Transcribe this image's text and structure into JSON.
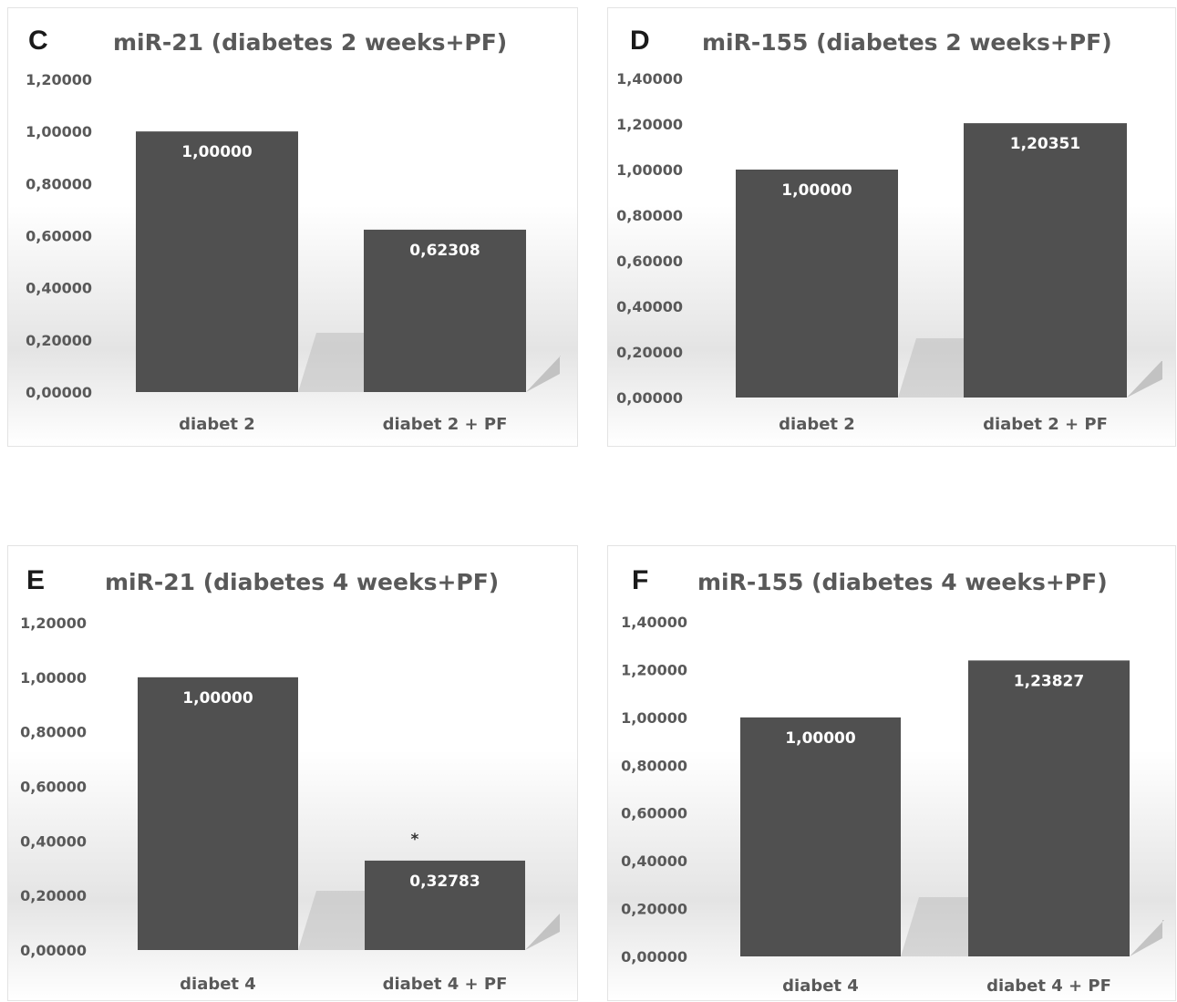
{
  "chart_data": [
    {
      "type": "bar",
      "panel_letter": "C",
      "title": "miR-21 (diabetes 2 weeks+PF)",
      "categories": [
        "diabet 2",
        "diabet 2 + PF"
      ],
      "values": [
        1.0,
        0.62308
      ],
      "value_labels": [
        "1,00000",
        "0,62308"
      ],
      "ylim": [
        0,
        1.2
      ],
      "yticks": [
        "0,00000",
        "0,20000",
        "0,40000",
        "0,60000",
        "0,80000",
        "1,00000",
        "1,20000"
      ],
      "annotations": [],
      "bar_color": "#505050",
      "grid": false,
      "legend": "none"
    },
    {
      "type": "bar",
      "panel_letter": "D",
      "title": "miR-155 (diabetes 2 weeks+PF)",
      "categories": [
        "diabet 2",
        "diabet 2 + PF"
      ],
      "values": [
        1.0,
        1.20351
      ],
      "value_labels": [
        "1,00000",
        "1,20351"
      ],
      "ylim": [
        0,
        1.4
      ],
      "yticks": [
        "0,00000",
        "0,20000",
        "0,40000",
        "0,60000",
        "0,80000",
        "1,00000",
        "1,20000",
        "1,40000"
      ],
      "annotations": [],
      "bar_color": "#505050",
      "grid": false,
      "legend": "none"
    },
    {
      "type": "bar",
      "panel_letter": "E",
      "title": "miR-21 (diabetes 4 weeks+PF)",
      "categories": [
        "diabet 4",
        "diabet 4 + PF"
      ],
      "values": [
        1.0,
        0.32783
      ],
      "value_labels": [
        "1,00000",
        "0,32783"
      ],
      "ylim": [
        0,
        1.2
      ],
      "yticks": [
        "0,00000",
        "0,20000",
        "0,40000",
        "0,60000",
        "0,80000",
        "1,00000",
        "1,20000"
      ],
      "annotations": [
        {
          "category": "diabet 4 + PF",
          "text": "*"
        }
      ],
      "bar_color": "#505050",
      "grid": false,
      "legend": "none"
    },
    {
      "type": "bar",
      "panel_letter": "F",
      "title": "miR-155 (diabetes 4 weeks+PF)",
      "categories": [
        "diabet 4",
        "diabet 4 + PF"
      ],
      "values": [
        1.0,
        1.23827
      ],
      "value_labels": [
        "1,00000",
        "1,23827"
      ],
      "ylim": [
        0,
        1.4
      ],
      "yticks": [
        "0,00000",
        "0,20000",
        "0,40000",
        "0,60000",
        "0,80000",
        "1,00000",
        "1,20000",
        "1,40000"
      ],
      "annotations": [],
      "bar_color": "#505050",
      "grid": false,
      "legend": "none"
    }
  ]
}
